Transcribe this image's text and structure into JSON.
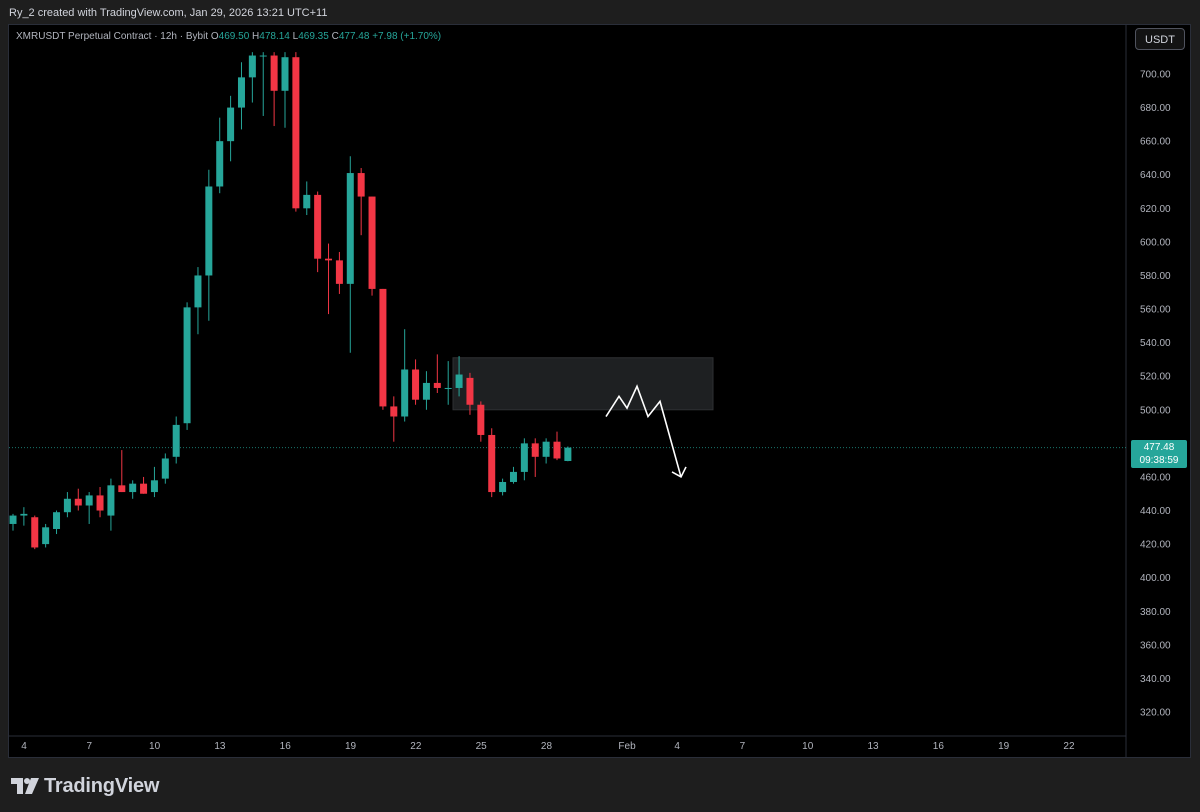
{
  "credit": "Ry_2 created with TradingView.com, Jan 29, 2026 13:21 UTC+11",
  "legend": {
    "symbol": "XMRUSDT Perpetual Contract · 12h · Bybit",
    "o_label": "O",
    "o": "469.50",
    "h_label": "H",
    "h": "478.14",
    "l_label": "L",
    "l": "469.35",
    "c_label": "C",
    "c": "477.48",
    "change": "+7.98 (+1.70%)"
  },
  "currency_button": "USDT",
  "price_badge": {
    "price": "477.48",
    "countdown": "09:38:59"
  },
  "brand": "TradingView",
  "colors": {
    "up": "#26a69a",
    "down": "#f23645",
    "background": "#000000",
    "drawing": "#ffffff",
    "zone": "#1e2022"
  },
  "chart_data": {
    "type": "candlestick",
    "title": "XMRUSDT Perpetual Contract · 12h · Bybit",
    "interval": "12h",
    "x_ticks": [
      "4",
      "7",
      "10",
      "13",
      "16",
      "19",
      "22",
      "25",
      "28",
      "Feb",
      "4",
      "7",
      "10",
      "13",
      "16",
      "19",
      "22"
    ],
    "y_ticks": [
      "320.00",
      "340.00",
      "360.00",
      "380.00",
      "400.00",
      "420.00",
      "440.00",
      "460.00",
      "480.00",
      "500.00",
      "520.00",
      "540.00",
      "560.00",
      "580.00",
      "600.00",
      "620.00",
      "640.00",
      "660.00",
      "680.00",
      "700.00"
    ],
    "ylim": [
      310,
      718
    ],
    "last_price": 477.48,
    "grid": false,
    "candles": [
      {
        "o": 432,
        "h": 438,
        "l": 428,
        "c": 437
      },
      {
        "o": 437,
        "h": 442,
        "l": 431,
        "c": 438
      },
      {
        "o": 436,
        "h": 437,
        "l": 417,
        "c": 418
      },
      {
        "o": 420,
        "h": 432,
        "l": 418,
        "c": 430
      },
      {
        "o": 429,
        "h": 440,
        "l": 426,
        "c": 439
      },
      {
        "o": 439,
        "h": 451,
        "l": 436,
        "c": 447
      },
      {
        "o": 447,
        "h": 453,
        "l": 440,
        "c": 443
      },
      {
        "o": 443,
        "h": 451,
        "l": 432,
        "c": 449
      },
      {
        "o": 449,
        "h": 454,
        "l": 436,
        "c": 440
      },
      {
        "o": 437,
        "h": 459,
        "l": 428,
        "c": 455
      },
      {
        "o": 455,
        "h": 476,
        "l": 451,
        "c": 451
      },
      {
        "o": 451,
        "h": 458,
        "l": 447,
        "c": 456
      },
      {
        "o": 456,
        "h": 460,
        "l": 450,
        "c": 450
      },
      {
        "o": 451,
        "h": 466,
        "l": 448,
        "c": 458
      },
      {
        "o": 459,
        "h": 474,
        "l": 456,
        "c": 471
      },
      {
        "o": 472,
        "h": 496,
        "l": 468,
        "c": 491
      },
      {
        "o": 492,
        "h": 564,
        "l": 488,
        "c": 561
      },
      {
        "o": 561,
        "h": 585,
        "l": 545,
        "c": 580
      },
      {
        "o": 580,
        "h": 643,
        "l": 553,
        "c": 633
      },
      {
        "o": 633,
        "h": 674,
        "l": 629,
        "c": 660
      },
      {
        "o": 660,
        "h": 687,
        "l": 648,
        "c": 680
      },
      {
        "o": 680,
        "h": 707,
        "l": 667,
        "c": 698
      },
      {
        "o": 698,
        "h": 713,
        "l": 683,
        "c": 711
      },
      {
        "o": 711,
        "h": 713,
        "l": 675,
        "c": 711
      },
      {
        "o": 711,
        "h": 713,
        "l": 669,
        "c": 690
      },
      {
        "o": 690,
        "h": 713,
        "l": 668,
        "c": 710
      },
      {
        "o": 710,
        "h": 713,
        "l": 618,
        "c": 620
      },
      {
        "o": 620,
        "h": 636,
        "l": 616,
        "c": 628
      },
      {
        "o": 628,
        "h": 630,
        "l": 582,
        "c": 590
      },
      {
        "o": 590,
        "h": 599,
        "l": 557,
        "c": 589
      },
      {
        "o": 589,
        "h": 594,
        "l": 569,
        "c": 575
      },
      {
        "o": 575,
        "h": 651,
        "l": 534,
        "c": 641
      },
      {
        "o": 641,
        "h": 644,
        "l": 604,
        "c": 627
      },
      {
        "o": 627,
        "h": 627,
        "l": 568,
        "c": 572
      },
      {
        "o": 572,
        "h": 572,
        "l": 500,
        "c": 502
      },
      {
        "o": 502,
        "h": 508,
        "l": 481,
        "c": 496
      },
      {
        "o": 496,
        "h": 548,
        "l": 493,
        "c": 524
      },
      {
        "o": 524,
        "h": 530,
        "l": 503,
        "c": 506
      },
      {
        "o": 506,
        "h": 523,
        "l": 500,
        "c": 516
      },
      {
        "o": 516,
        "h": 533,
        "l": 510,
        "c": 513
      },
      {
        "o": 513,
        "h": 529,
        "l": 503,
        "c": 513
      },
      {
        "o": 513,
        "h": 532,
        "l": 508,
        "c": 521
      },
      {
        "o": 519,
        "h": 522,
        "l": 497,
        "c": 503
      },
      {
        "o": 503,
        "h": 505,
        "l": 481,
        "c": 485
      },
      {
        "o": 485,
        "h": 489,
        "l": 448,
        "c": 451
      },
      {
        "o": 451,
        "h": 459,
        "l": 449,
        "c": 457
      },
      {
        "o": 457,
        "h": 466,
        "l": 456,
        "c": 463
      },
      {
        "o": 463,
        "h": 483,
        "l": 458,
        "c": 480
      },
      {
        "o": 480,
        "h": 483,
        "l": 460,
        "c": 472
      },
      {
        "o": 472,
        "h": 483,
        "l": 468,
        "c": 481
      },
      {
        "o": 481,
        "h": 487,
        "l": 470,
        "c": 471
      },
      {
        "o": 469.5,
        "h": 478.14,
        "l": 469.35,
        "c": 477.48
      }
    ],
    "annotations": [
      {
        "type": "rectangle",
        "price_top": 531,
        "price_bottom": 500,
        "description": "supply zone"
      },
      {
        "type": "path",
        "prices": [
          496,
          508,
          501,
          514,
          496,
          505,
          460
        ],
        "arrow": true
      }
    ]
  }
}
